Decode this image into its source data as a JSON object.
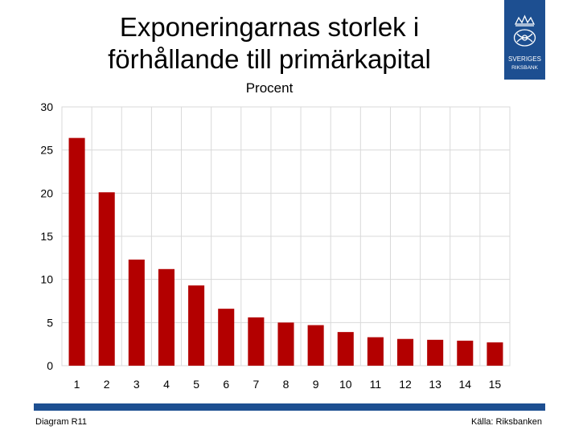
{
  "slide": {
    "title_line1": "Exponeringarnas storlek i",
    "title_line2": "förhållande till primärkapital",
    "diagram_label": "Diagram R11",
    "source": "Källa: Riksbanken",
    "logo_text_line1": "SVERIGES",
    "logo_text_line2": "RIKSBANK",
    "brand_color": "#1d4f91"
  },
  "chart_data": {
    "type": "bar",
    "title": "",
    "subtitle": "Procent",
    "xlabel": "",
    "ylabel": "",
    "categories": [
      "1",
      "2",
      "3",
      "4",
      "5",
      "6",
      "7",
      "8",
      "9",
      "10",
      "11",
      "12",
      "13",
      "14",
      "15"
    ],
    "values": [
      26.4,
      20.1,
      12.3,
      11.2,
      9.3,
      6.6,
      5.6,
      5.0,
      4.7,
      3.9,
      3.3,
      3.1,
      3.0,
      2.9,
      2.7
    ],
    "ylim": [
      0,
      30
    ],
    "yticks": [
      0,
      5,
      10,
      15,
      20,
      25,
      30
    ],
    "grid": true,
    "bar_color": "#b30000",
    "legend": "none"
  }
}
